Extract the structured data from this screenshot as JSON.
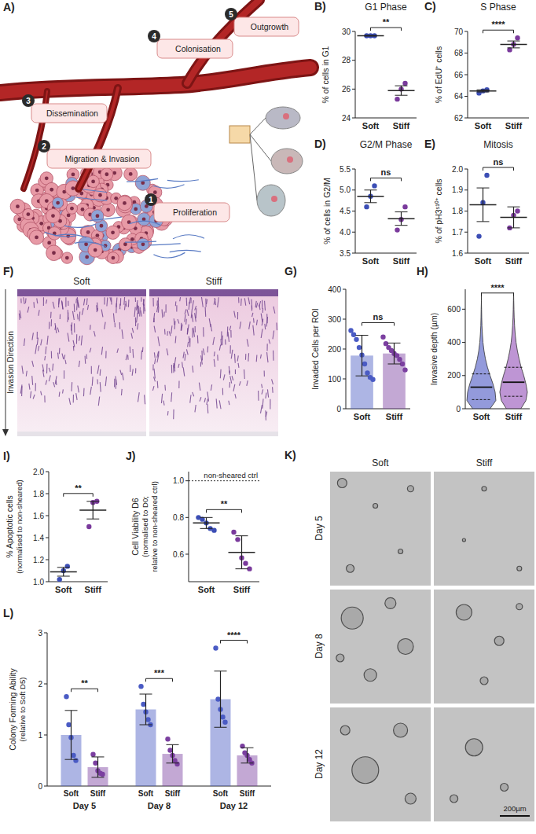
{
  "diagram": {
    "panel": "A)",
    "steps": [
      {
        "number": 1,
        "label": "Proliferation"
      },
      {
        "number": 2,
        "label": "Migration & Invasion"
      },
      {
        "number": 3,
        "label": "Dissemination"
      },
      {
        "number": 4,
        "label": "Colonisation"
      },
      {
        "number": 5,
        "label": "Outgrowth"
      }
    ]
  },
  "chart_data": [
    {
      "panel": "B)",
      "type": "dot",
      "title": "G1 Phase",
      "y_label": "% of cells in G1",
      "categories": [
        "Soft",
        "Stiff"
      ],
      "points": [
        [
          29.7,
          29.7,
          29.7
        ],
        [
          25.3,
          26.0,
          26.4
        ]
      ],
      "values": [
        29.7,
        25.9
      ],
      "errors": [
        0.02,
        0.33
      ],
      "colors": [
        "#3c4eb5",
        "#7a3a9c"
      ],
      "ylim": [
        24,
        30
      ],
      "yticks": [
        24,
        26,
        28,
        30
      ],
      "annotations": [
        "**"
      ]
    },
    {
      "panel": "C)",
      "type": "dot",
      "title": "S Phase",
      "y_label": "% of EdU⁺ cells",
      "categories": [
        "Soft",
        "Stiff"
      ],
      "points": [
        [
          64.3,
          64.5,
          64.6
        ],
        [
          68.3,
          68.8,
          69.4
        ]
      ],
      "values": [
        64.5,
        68.8
      ],
      "errors": [
        0.1,
        0.32
      ],
      "colors": [
        "#3c4eb5",
        "#7a3a9c"
      ],
      "ylim": [
        62,
        70
      ],
      "yticks": [
        62,
        64,
        66,
        68,
        70
      ],
      "annotations": [
        "****"
      ]
    },
    {
      "panel": "D)",
      "type": "dot",
      "title": "G2/M Phase",
      "y_label": "% of cells in G2/M",
      "categories": [
        "Soft",
        "Stiff"
      ],
      "points": [
        [
          4.6,
          4.85,
          5.1
        ],
        [
          4.05,
          4.3,
          4.6
        ]
      ],
      "values": [
        4.85,
        4.32
      ],
      "errors": [
        0.15,
        0.16
      ],
      "colors": [
        "#3c4eb5",
        "#7a3a9c"
      ],
      "ylim": [
        3.5,
        5.5
      ],
      "yticks": [
        3.5,
        {
          "value": 4,
          "label": "4.0"
        },
        4.5,
        {
          "value": 5,
          "label": "5.0"
        },
        5.5
      ],
      "annotations": [
        "ns"
      ]
    },
    {
      "panel": "E)",
      "type": "dot",
      "title": "Mitosis",
      "y_label": "% of pH3ˢ¹⁰⁺ cells",
      "categories": [
        "Soft",
        "Stiff"
      ],
      "points": [
        [
          1.68,
          1.84,
          1.97
        ],
        [
          1.72,
          1.78,
          1.8
        ]
      ],
      "values": [
        1.83,
        1.77
      ],
      "errors": [
        0.08,
        0.05
      ],
      "colors": [
        "#3c4eb5",
        "#7a3a9c"
      ],
      "ylim": [
        1.6,
        2.0
      ],
      "yticks": [
        1.6,
        1.7,
        1.8,
        1.9,
        {
          "value": 2,
          "label": "2.0"
        }
      ],
      "annotations": [
        "ns"
      ]
    },
    {
      "panel": "G)",
      "type": "bar_dot",
      "y_label": "Invaded Cells per ROI",
      "categories": [
        "Soft",
        "Stiff"
      ],
      "points": [
        [
          262,
          248,
          232,
          205,
          180,
          150,
          120,
          105,
          98
        ],
        [
          240,
          218,
          205,
          195,
          185,
          178,
          165,
          150,
          130
        ]
      ],
      "values": [
        178,
        185
      ],
      "errors": [
        68,
        35
      ],
      "colors": [
        "#4a5bc4",
        "#7b3fa0"
      ],
      "ylim": [
        0,
        400
      ],
      "yticks": [
        0,
        100,
        200,
        300,
        400
      ],
      "annotations": [
        "ns"
      ]
    },
    {
      "panel": "H)",
      "type": "violin",
      "y_label": "Invasive depth (µm)",
      "categories": [
        "Soft",
        "Stiff"
      ],
      "density_y": [
        0,
        50,
        100,
        150,
        200,
        250,
        300,
        350,
        400,
        450,
        500,
        550,
        600,
        650,
        700
      ],
      "density": [
        [
          0.6,
          1.0,
          0.95,
          0.8,
          0.6,
          0.42,
          0.28,
          0.18,
          0.11,
          0.07,
          0.04,
          0.025,
          0.015,
          0,
          0
        ],
        [
          0.5,
          0.85,
          0.95,
          0.85,
          0.7,
          0.52,
          0.38,
          0.26,
          0.17,
          0.11,
          0.07,
          0.04,
          0.025,
          0.012,
          0
        ]
      ],
      "medians": [
        130,
        160
      ],
      "q1": [
        55,
        75
      ],
      "q3": [
        210,
        250
      ],
      "colors": [
        "#6f78cf",
        "#a872c6"
      ],
      "ylim": [
        0,
        720
      ],
      "yticks": [
        0,
        200,
        400,
        600
      ],
      "annotations": [
        "****"
      ]
    },
    {
      "panel": "I)",
      "type": "dot",
      "y_label": [
        "% Apoptotic cells",
        "(normalised to non-sheared)"
      ],
      "categories": [
        "Soft",
        "Stiff"
      ],
      "points": [
        [
          1.02,
          1.1,
          1.14
        ],
        [
          1.5,
          1.72,
          1.73
        ]
      ],
      "values": [
        1.09,
        1.65
      ],
      "errors": [
        0.04,
        0.08
      ],
      "colors": [
        "#3c4eb5",
        "#7a3a9c"
      ],
      "ylim": [
        1,
        2
      ],
      "yticks": [
        {
          "value": 1,
          "label": "1.0"
        },
        1.2,
        1.4,
        1.6,
        1.8,
        {
          "value": 2,
          "label": "2.0"
        }
      ],
      "annotations": [
        "**"
      ]
    },
    {
      "panel": "J)",
      "type": "dot",
      "y_label": [
        "Cell Viability D6",
        "(normalised to D0;",
        "relative to non-sheared ctrl)"
      ],
      "categories": [
        "Soft",
        "Stiff"
      ],
      "points": [
        [
          0.8,
          0.79,
          0.77,
          0.74,
          0.73
        ],
        [
          0.72,
          0.68,
          0.58,
          0.55,
          0.52
        ]
      ],
      "values": [
        0.77,
        0.61
      ],
      "errors": [
        0.03,
        0.09
      ],
      "colors": [
        "#3c4eb5",
        "#7a3a9c"
      ],
      "reference_line": {
        "value": 1,
        "label": "non-sheared ctrl"
      },
      "ylim": [
        0.45,
        1.05
      ],
      "yticks": [
        0.6,
        0.8,
        {
          "value": 1,
          "label": "1.0"
        }
      ],
      "annotations": [
        "**"
      ]
    },
    {
      "panel": "L)",
      "type": "grouped_bar",
      "y_label": [
        "Colony Forming Ability",
        "(relative to Soft D5)"
      ],
      "categories": [
        "Day 5",
        "Day 8",
        "Day 12"
      ],
      "series": [
        {
          "name": "Soft",
          "color": "#4a5bc4",
          "values": [
            1.0,
            1.5,
            1.7
          ],
          "errors": [
            0.48,
            0.3,
            0.55
          ],
          "points": [
            [
              1.75,
              1.2,
              0.95,
              0.6,
              0.5
            ],
            [
              1.95,
              1.6,
              1.45,
              1.3,
              1.2
            ],
            [
              2.7,
              1.7,
              1.5,
              1.35,
              1.25
            ]
          ]
        },
        {
          "name": "Stiff",
          "color": "#7b3fa0",
          "values": [
            0.37,
            0.63,
            0.6
          ],
          "errors": [
            0.2,
            0.18,
            0.15
          ],
          "points": [
            [
              0.62,
              0.45,
              0.3,
              0.25,
              0.23
            ],
            [
              0.92,
              0.7,
              0.6,
              0.5,
              0.43
            ],
            [
              0.78,
              0.65,
              0.6,
              0.52,
              0.45
            ]
          ]
        }
      ],
      "ylim": [
        0,
        3
      ],
      "yticks": [
        0,
        1,
        2,
        3
      ],
      "annotations": [
        "**",
        "***",
        "****"
      ]
    }
  ],
  "images": {
    "F": {
      "panel": "F)",
      "columns": [
        "Soft",
        "Stiff"
      ],
      "axis_label": "Invasion Direction"
    },
    "K": {
      "panel": "K)",
      "columns": [
        "Soft",
        "Stiff"
      ],
      "rows": [
        "Day 5",
        "Day 8",
        "Day 12"
      ],
      "scale_bar": "200µm"
    }
  }
}
